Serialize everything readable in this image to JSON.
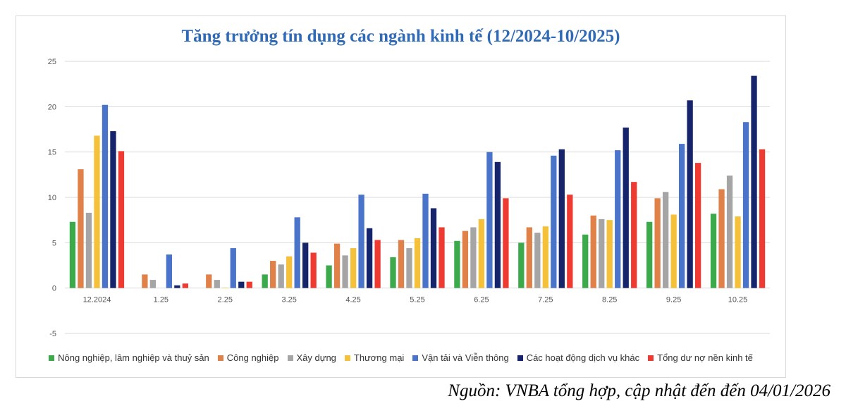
{
  "chart_data": {
    "type": "bar",
    "title": "Tăng trưởng tín dụng các ngành kinh tế (12/2024-10/2025)",
    "xlabel": "",
    "ylabel": "",
    "ylim": [
      -5,
      25
    ],
    "yticks": [
      "-5",
      "0",
      "5",
      "10",
      "15",
      "20",
      "25"
    ],
    "grid": true,
    "legend_position": "bottom",
    "categories": [
      "12.2024",
      "1.25",
      "2.25",
      "3.25",
      "4.25",
      "5.25",
      "6.25",
      "7.25",
      "8.25",
      "9.25",
      "10.25"
    ],
    "series": [
      {
        "name": "Nông nghiệp, lâm nghiệp và thuỷ sản",
        "color": "#3caa4b",
        "values": [
          7.3,
          0,
          0,
          1.5,
          2.5,
          3.4,
          5.2,
          5.0,
          5.9,
          7.3,
          8.2
        ]
      },
      {
        "name": "Công nghiệp",
        "color": "#e0814a",
        "values": [
          13.1,
          1.5,
          1.5,
          3.0,
          4.9,
          5.3,
          6.3,
          6.7,
          8.0,
          9.9,
          10.9
        ]
      },
      {
        "name": "Xây dựng",
        "color": "#a5a5a5",
        "values": [
          8.3,
          0.9,
          0.9,
          2.6,
          3.6,
          4.4,
          6.7,
          6.1,
          7.6,
          10.6,
          12.4
        ]
      },
      {
        "name": "Thương mại",
        "color": "#f5c13b",
        "values": [
          16.8,
          0,
          0.05,
          3.5,
          4.4,
          5.5,
          7.6,
          6.8,
          7.5,
          8.1,
          7.9
        ]
      },
      {
        "name": "Vận tải và Viễn thông",
        "color": "#4a74c9",
        "values": [
          20.2,
          3.7,
          4.4,
          7.8,
          10.3,
          10.4,
          15.0,
          14.6,
          15.2,
          15.9,
          18.3
        ]
      },
      {
        "name": "Các hoạt động dịch vụ khác",
        "color": "#15246b",
        "values": [
          17.3,
          0.3,
          0.7,
          5.0,
          6.6,
          8.8,
          13.9,
          15.3,
          17.7,
          20.7,
          23.4
        ]
      },
      {
        "name": "Tổng dư nợ nền kinh tế",
        "color": "#ef3a32",
        "values": [
          15.1,
          0.5,
          0.7,
          3.9,
          5.3,
          6.7,
          9.9,
          10.3,
          11.7,
          13.8,
          15.3
        ]
      }
    ]
  },
  "source_note": "Nguồn: VNBA tổng hợp, cập nhật đến đến 04/01/2026"
}
